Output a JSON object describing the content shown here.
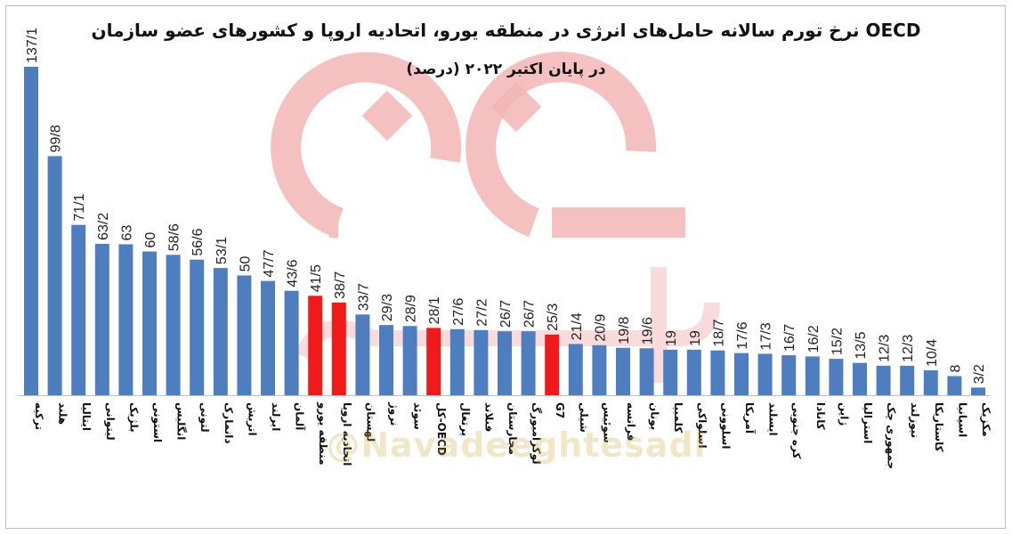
{
  "title_line1": "نرخ تورم سالانه حامل‌های انرژی در منطقه یورو، اتحادیه اروپا و کشورهای عضو سازمان OECD",
  "title_line2": "در پایان اکتبر ۲۰۲۲ (درصد)",
  "watermark": "@Navadeeghtesadi",
  "colors": {
    "bar": "#4f7ec0",
    "highlight": "#f01a1a",
    "logo": "#f4b6b6"
  },
  "chart_data": {
    "type": "bar",
    "title": "نرخ تورم سالانه حامل‌های انرژی در منطقه یورو، اتحادیه اروپا و کشورهای عضو سازمان OECD",
    "subtitle": "در پایان اکتبر ۲۰۲۲ (درصد)",
    "xlabel": "",
    "ylabel": "",
    "ylim": [
      0,
      140
    ],
    "grid": false,
    "legend": "none",
    "categories": [
      "ترکیه",
      "هلند",
      "ایتالیا",
      "لیتوانی",
      "بلژیک",
      "استونی",
      "انگلیس",
      "لتونی",
      "دانمارک",
      "اتریش",
      "ایرلند",
      "آلمان",
      "منطقه یورو",
      "اتحادیه اروپا",
      "لهستان",
      "نروژ",
      "سوئد",
      "کل-OECD",
      "پرتغال",
      "فنلاند",
      "مجارستان",
      "لوکزامبورگ",
      "G7",
      "شیلی",
      "سوئیس",
      "فرانسه",
      "یونان",
      "کلمبیا",
      "اسلواکی",
      "اسلوونی",
      "آمریکا",
      "ایسلند",
      "کره جنوبی",
      "کانادا",
      "ژاپن",
      "استرالیا",
      "جمهوری چک",
      "نیوزلند",
      "کاستاریکا",
      "اسپانیا",
      "مکزیک"
    ],
    "values": [
      137.1,
      99.8,
      71.1,
      63.2,
      63,
      60,
      58.6,
      56.6,
      53.1,
      50,
      47.7,
      43.6,
      41.5,
      38.7,
      33.7,
      29.3,
      28.9,
      28.1,
      27.6,
      27.2,
      26.7,
      26.7,
      25.3,
      21.4,
      20.9,
      19.8,
      19.6,
      19,
      19,
      18.7,
      17.6,
      17.3,
      16.7,
      16.2,
      15.2,
      13.5,
      12.3,
      12.3,
      10.4,
      8,
      3.2
    ],
    "value_labels": [
      "137/1",
      "99/8",
      "71/1",
      "63/2",
      "63",
      "60",
      "58/6",
      "56/6",
      "53/1",
      "50",
      "47/7",
      "43/6",
      "41/5",
      "38/7",
      "33/7",
      "29/3",
      "28/9",
      "28/1",
      "27/6",
      "27/2",
      "26/7",
      "26/7",
      "25/3",
      "21/4",
      "20/9",
      "19/8",
      "19/6",
      "19",
      "19",
      "18/7",
      "17/6",
      "17/3",
      "16/7",
      "16/2",
      "15/2",
      "13/5",
      "12/3",
      "12/3",
      "10/4",
      "8",
      "3/2"
    ],
    "highlighted": [
      "منطقه یورو",
      "اتحادیه اروپا",
      "کل-OECD",
      "G7"
    ]
  }
}
